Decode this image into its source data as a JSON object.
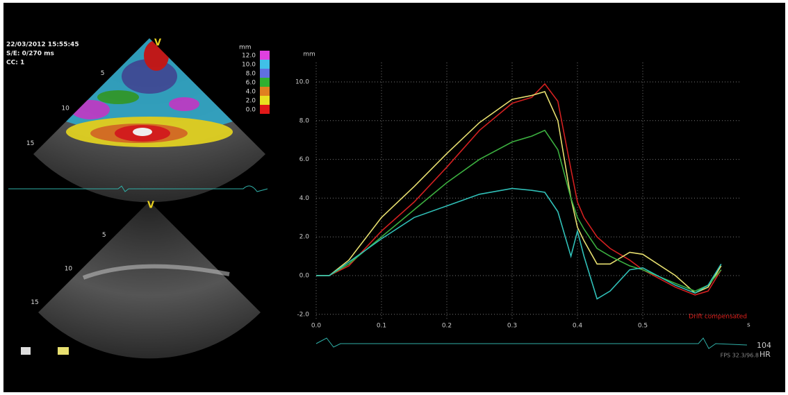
{
  "chart_data": {
    "type": "line",
    "ylabel": "mm",
    "xlabel": "s",
    "annotation": "Drift compensated",
    "annotation_color": "#e0201c",
    "x": [
      0,
      0.02,
      0.05,
      0.1,
      0.15,
      0.2,
      0.25,
      0.3,
      0.33,
      0.35,
      0.37,
      0.39,
      0.4,
      0.41,
      0.43,
      0.45,
      0.48,
      0.5,
      0.55,
      0.58,
      0.6,
      0.62
    ],
    "series": [
      {
        "color": "#d42020",
        "values": [
          0,
          0,
          0.5,
          2.3,
          3.8,
          5.6,
          7.5,
          8.9,
          9.2,
          9.9,
          9.0,
          5.5,
          3.8,
          3.0,
          2.0,
          1.4,
          0.8,
          0.3,
          -0.6,
          -1.0,
          -0.8,
          0.3
        ]
      },
      {
        "color": "#e8e070",
        "values": [
          0,
          0,
          0.8,
          3.0,
          4.6,
          6.3,
          7.9,
          9.1,
          9.3,
          9.5,
          8.0,
          4.0,
          2.5,
          1.8,
          0.6,
          0.6,
          1.2,
          1.1,
          0,
          -0.9,
          -0.6,
          0.5
        ]
      },
      {
        "color": "#3cb040",
        "values": [
          0,
          0,
          0.6,
          2.0,
          3.4,
          4.8,
          6.0,
          6.9,
          7.2,
          7.5,
          6.5,
          4.0,
          3.0,
          2.4,
          1.4,
          1.0,
          0.5,
          0.3,
          -0.4,
          -0.8,
          -0.5,
          0.3
        ]
      },
      {
        "color": "#30c0b8",
        "values": [
          0,
          0,
          0.7,
          1.9,
          3.0,
          3.6,
          4.2,
          4.5,
          4.4,
          4.3,
          3.3,
          1.0,
          2.3,
          1.0,
          -1.2,
          -0.8,
          0.3,
          0.4,
          -0.5,
          -0.9,
          -0.5,
          0.6
        ]
      }
    ],
    "xlim": [
      0,
      0.65
    ],
    "xticks": [
      {
        "value": 0,
        "label": "0.0"
      },
      0.1,
      0.2,
      0.3,
      0.4,
      0.5
    ],
    "ylim": [
      -2.3,
      11
    ],
    "yticks": [
      {
        "value": -2,
        "label": "-2.0"
      },
      {
        "value": 0,
        "label": "0.0"
      },
      {
        "value": 2,
        "label": "2.0"
      },
      {
        "value": 4,
        "label": "4.0"
      },
      {
        "value": 6,
        "label": "6.0"
      },
      {
        "value": 8,
        "label": "8.0"
      },
      {
        "value": 10,
        "label": "10.0"
      }
    ],
    "grid": true
  },
  "overlay": {
    "datetime": "22/03/2012 15:55:45",
    "se": "S/E:  0/270 ms",
    "cc": "CC: 1",
    "view_top": "V",
    "view_bottom": "V",
    "depth_top": [
      "5",
      "10",
      "15"
    ],
    "depth_bottom": [
      "5",
      "10",
      "15"
    ],
    "scale_unit": "mm",
    "scale": [
      {
        "label": "12.0",
        "color": "#e040e0"
      },
      {
        "label": "10.0",
        "color": "#40c0e8"
      },
      {
        "label": "8.0",
        "color": "#6070e0"
      },
      {
        "label": "6.0",
        "color": "#30b030"
      },
      {
        "label": "4.0",
        "color": "#e08020"
      },
      {
        "label": "2.0",
        "color": "#e8e020"
      },
      {
        "label": "0.0",
        "color": "#e01818"
      }
    ],
    "hr_value": "104",
    "fps": "FPS 32.3/96.8",
    "hr": "HR"
  }
}
